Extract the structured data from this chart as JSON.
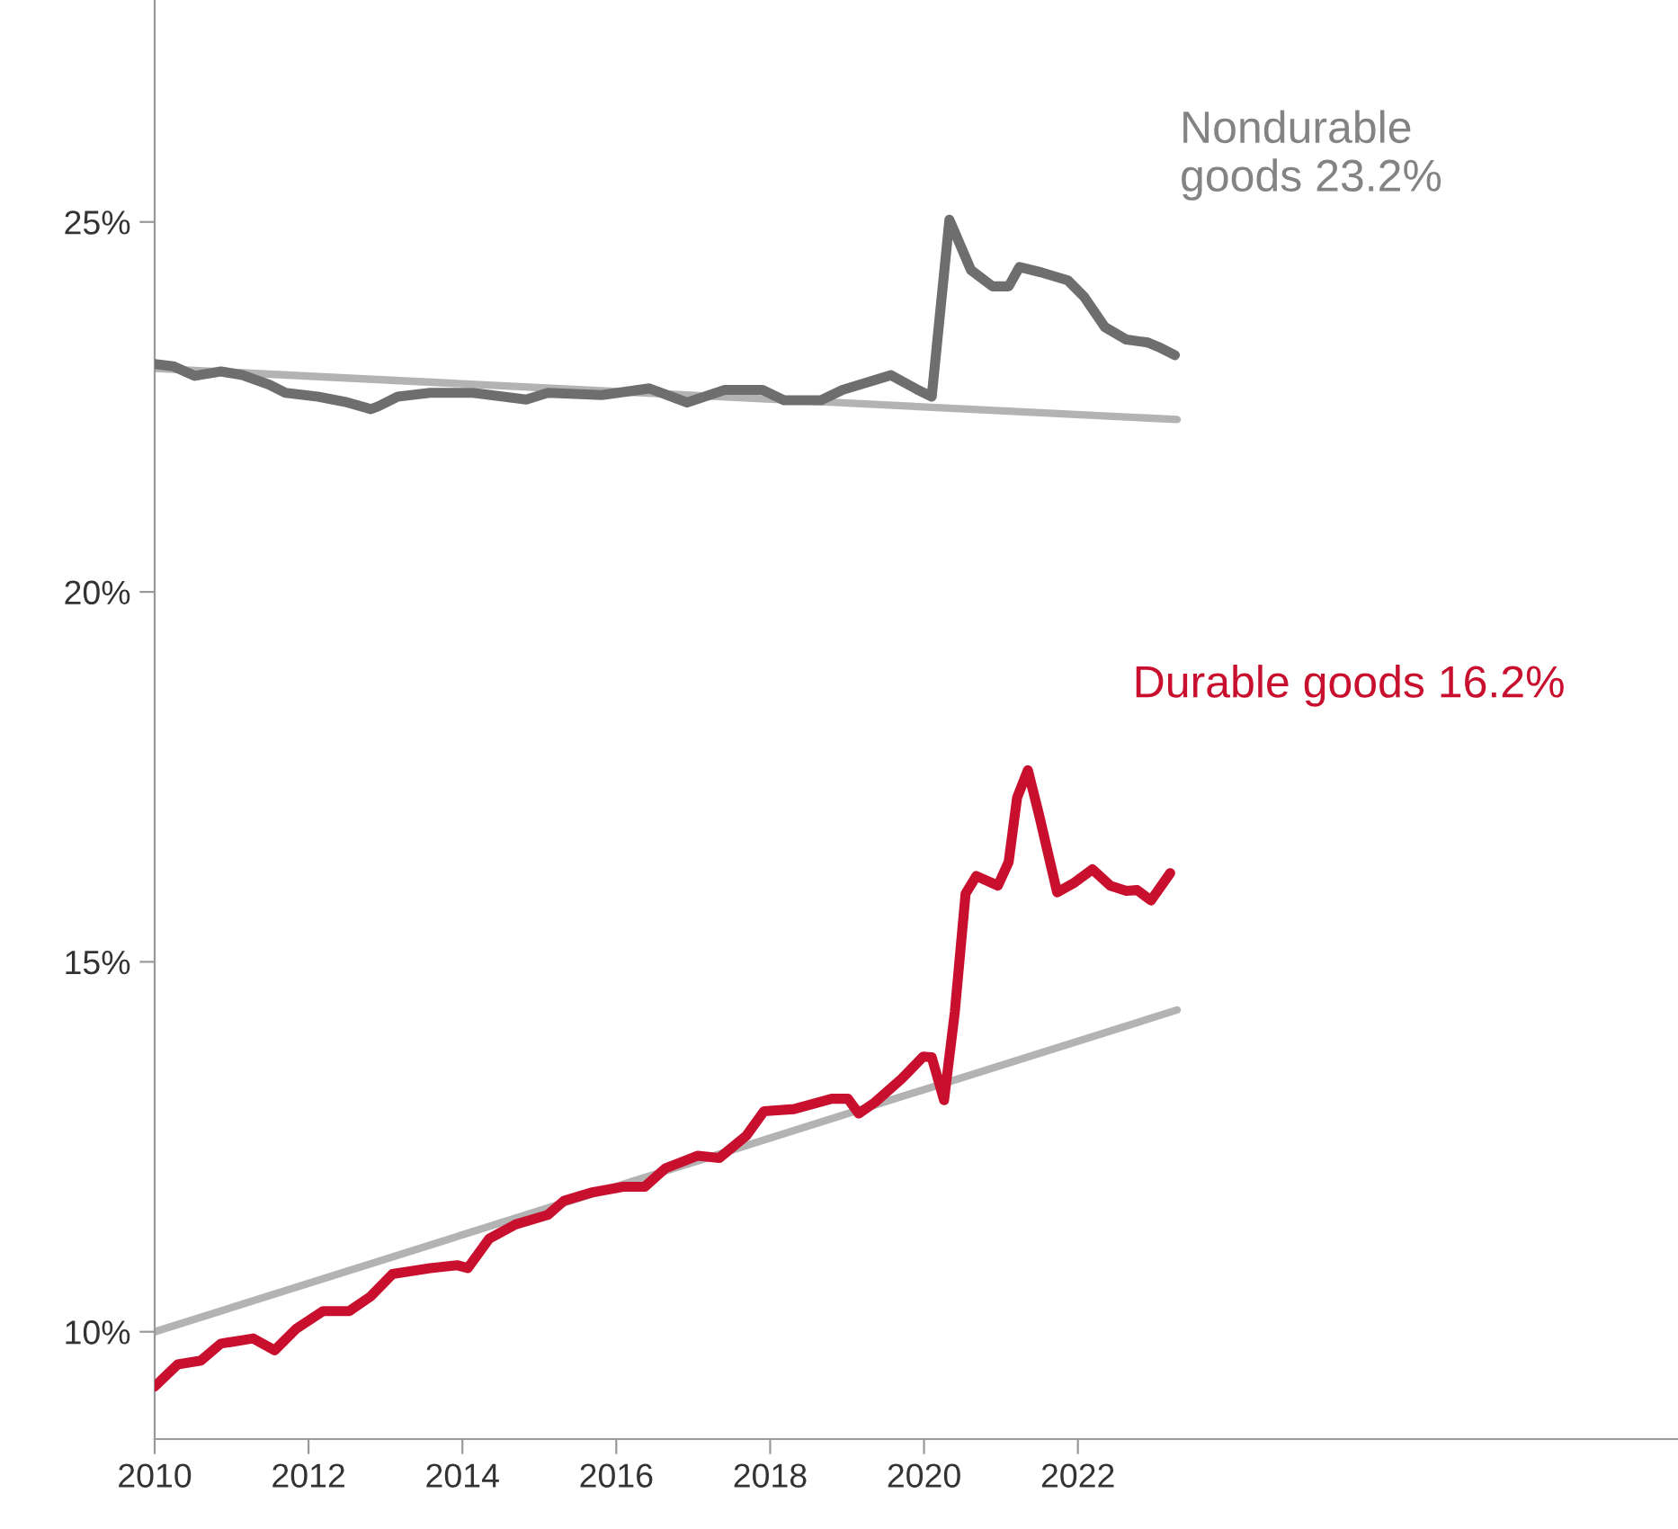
{
  "chart_data": {
    "type": "line",
    "xlim": [
      2010,
      2029.8
    ],
    "ylim": [
      8.55,
      28
    ],
    "xticks": [
      2010,
      2012,
      2014,
      2016,
      2018,
      2020,
      2022
    ],
    "yticks": [
      {
        "value": 10,
        "label": "10%"
      },
      {
        "value": 15,
        "label": "15%"
      },
      {
        "value": 20,
        "label": "20%"
      },
      {
        "value": 25,
        "label": "25%"
      }
    ],
    "grid": false,
    "legend": false,
    "marker": "none",
    "line_style": "solid",
    "series": [
      {
        "name": "Nondurable\ngoods 23.2%",
        "color": "#6e6e6e",
        "x": [
          2010.0,
          2010.24,
          2010.52,
          2010.86,
          2011.14,
          2011.49,
          2011.7,
          2012.12,
          2012.47,
          2012.81,
          2012.91,
          2013.16,
          2013.58,
          2014.14,
          2014.83,
          2015.11,
          2015.81,
          2016.43,
          2016.92,
          2017.41,
          2017.9,
          2018.18,
          2018.66,
          2018.94,
          2019.57,
          2019.92,
          2020.1,
          2020.33,
          2020.61,
          2020.89,
          2021.1,
          2021.24,
          2021.52,
          2021.87,
          2022.08,
          2022.35,
          2022.63,
          2022.91,
          2023.05,
          2023.26
        ],
        "values": [
          23.08,
          23.05,
          22.92,
          22.98,
          22.93,
          22.8,
          22.69,
          22.64,
          22.57,
          22.47,
          22.51,
          22.64,
          22.69,
          22.69,
          22.6,
          22.69,
          22.66,
          22.75,
          22.56,
          22.73,
          22.73,
          22.59,
          22.59,
          22.73,
          22.93,
          22.73,
          22.64,
          25.03,
          24.35,
          24.13,
          24.13,
          24.39,
          24.32,
          24.21,
          23.99,
          23.58,
          23.41,
          23.37,
          23.31,
          23.2
        ]
      },
      {
        "name": "Durable goods 16.2%",
        "color": "#c8102e",
        "x": [
          2010.0,
          2010.3,
          2010.6,
          2010.86,
          2011.28,
          2011.56,
          2011.84,
          2012.19,
          2012.53,
          2012.81,
          2013.09,
          2013.58,
          2013.93,
          2014.07,
          2014.35,
          2014.69,
          2015.11,
          2015.32,
          2015.67,
          2016.09,
          2016.37,
          2016.64,
          2017.06,
          2017.34,
          2017.69,
          2017.92,
          2018.31,
          2018.8,
          2019.01,
          2019.15,
          2019.36,
          2019.71,
          2019.99,
          2020.1,
          2020.26,
          2020.4,
          2020.54,
          2020.68,
          2020.96,
          2021.1,
          2021.21,
          2021.35,
          2021.49,
          2021.73,
          2021.94,
          2022.19,
          2022.42,
          2022.63,
          2022.77,
          2022.95,
          2023.2
        ],
        "values": [
          9.26,
          9.56,
          9.61,
          9.84,
          9.91,
          9.75,
          10.04,
          10.28,
          10.28,
          10.48,
          10.78,
          10.86,
          10.9,
          10.86,
          11.26,
          11.45,
          11.58,
          11.77,
          11.88,
          11.96,
          11.96,
          12.21,
          12.38,
          12.35,
          12.65,
          12.98,
          13.01,
          13.15,
          13.15,
          12.95,
          13.1,
          13.42,
          13.72,
          13.71,
          13.13,
          14.32,
          15.92,
          16.16,
          16.03,
          16.35,
          17.22,
          17.59,
          17.01,
          15.94,
          16.06,
          16.25,
          16.03,
          15.96,
          15.97,
          15.83,
          16.2
        ]
      },
      {
        "color": "#b3b3b3",
        "x": [
          2010.0,
          2023.29
        ],
        "values": [
          23.02,
          22.33
        ]
      },
      {
        "color": "#b3b3b3",
        "x": [
          2010.0,
          2023.29
        ],
        "values": [
          10.0,
          14.35
        ]
      }
    ]
  }
}
